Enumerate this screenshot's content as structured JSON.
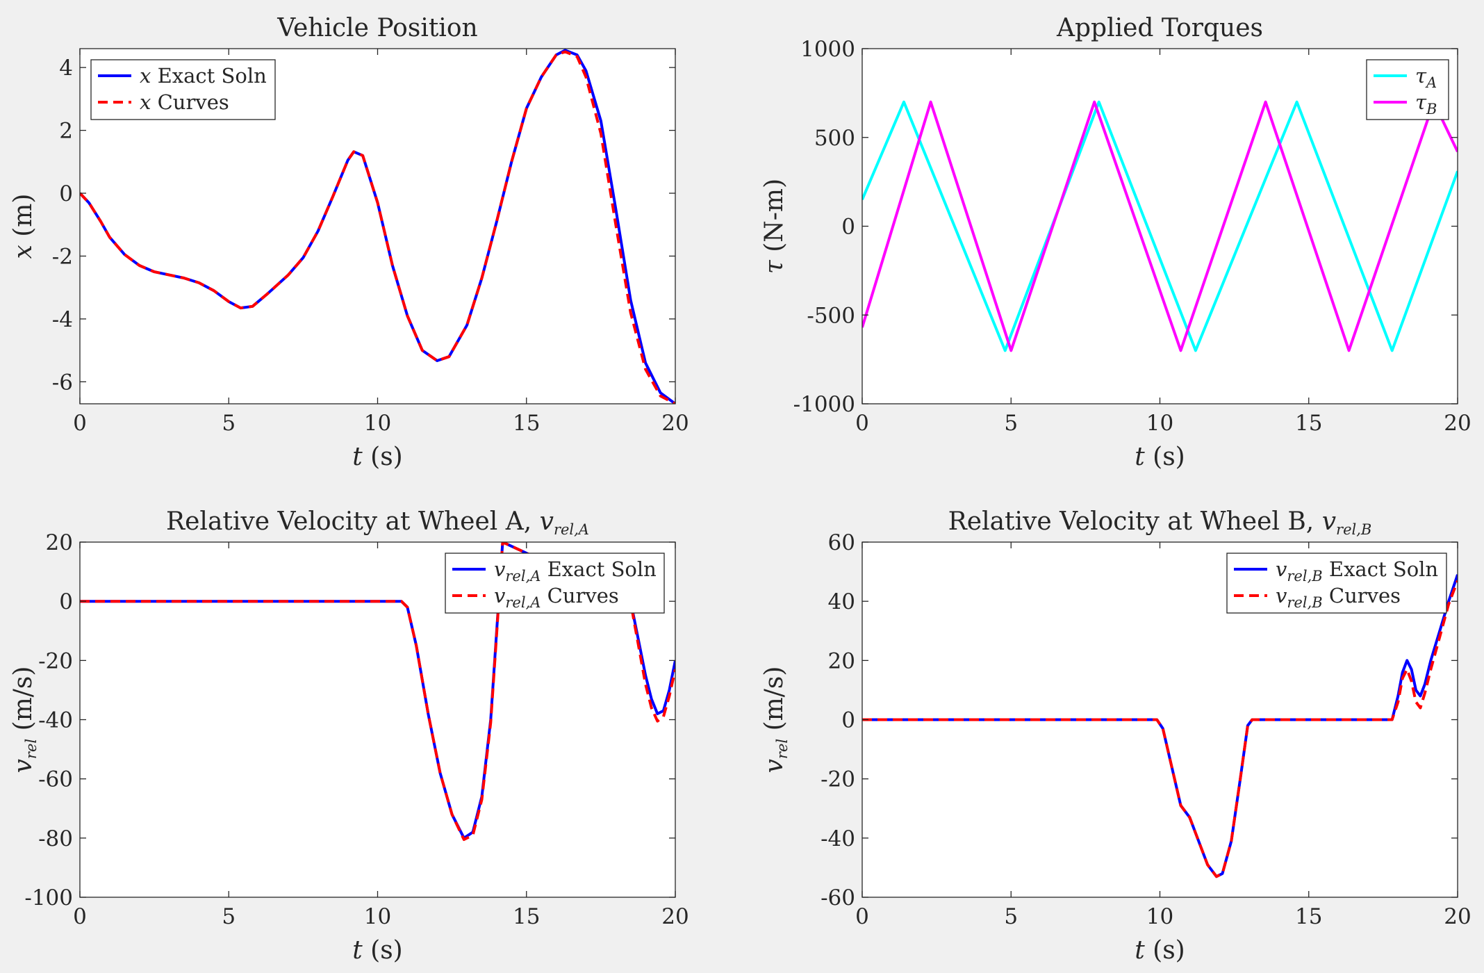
{
  "chart_data": [
    {
      "type": "line",
      "title": "Vehicle Position",
      "xlabel": "t (s)",
      "ylabel": "x (m)",
      "xlim": [
        0,
        20
      ],
      "ylim": [
        -6.7,
        4.6
      ],
      "xticks": [
        0,
        5,
        10,
        15,
        20
      ],
      "yticks": [
        -6,
        -4,
        -2,
        0,
        2,
        4
      ],
      "grid": false,
      "legend": "top-left",
      "series": [
        {
          "name": "x Exact Soln",
          "color": "#0000ff",
          "style": "solid",
          "x": [
            0,
            0.3,
            0.7,
            1,
            1.5,
            2,
            2.5,
            3,
            3.5,
            4,
            4.5,
            5,
            5.4,
            5.8,
            6.3,
            7,
            7.5,
            8,
            8.5,
            9,
            9.2,
            9.5,
            10,
            10.5,
            11,
            11.5,
            12,
            12.4,
            13,
            13.5,
            14,
            14.5,
            15,
            15.5,
            16,
            16.3,
            16.7,
            17,
            17.5,
            18,
            18.5,
            19,
            19.5,
            20
          ],
          "y": [
            0,
            -0.3,
            -0.9,
            -1.4,
            -1.95,
            -2.3,
            -2.5,
            -2.6,
            -2.7,
            -2.85,
            -3.1,
            -3.45,
            -3.65,
            -3.6,
            -3.2,
            -2.6,
            -2.05,
            -1.2,
            -0.1,
            1.05,
            1.32,
            1.2,
            -0.3,
            -2.3,
            -3.9,
            -5.0,
            -5.33,
            -5.2,
            -4.2,
            -2.7,
            -0.9,
            1.0,
            2.7,
            3.7,
            4.4,
            4.55,
            4.4,
            3.9,
            2.3,
            -0.5,
            -3.4,
            -5.4,
            -6.35,
            -6.7
          ]
        },
        {
          "name": "x Curves",
          "color": "#ff0000",
          "style": "dashed",
          "x": [
            0,
            0.3,
            0.7,
            1,
            1.5,
            2,
            2.5,
            3,
            3.5,
            4,
            4.5,
            5,
            5.4,
            5.8,
            6.3,
            7,
            7.5,
            8,
            8.5,
            9,
            9.2,
            9.5,
            10,
            10.5,
            11,
            11.5,
            12,
            12.4,
            13,
            13.5,
            14,
            14.5,
            15,
            15.5,
            16,
            16.3,
            16.7,
            17,
            17.5,
            18,
            18.5,
            19,
            19.5,
            20
          ],
          "y": [
            0,
            -0.3,
            -0.9,
            -1.4,
            -1.95,
            -2.3,
            -2.5,
            -2.6,
            -2.7,
            -2.85,
            -3.1,
            -3.45,
            -3.65,
            -3.6,
            -3.2,
            -2.6,
            -2.05,
            -1.2,
            -0.1,
            1.05,
            1.32,
            1.2,
            -0.3,
            -2.3,
            -3.9,
            -5.0,
            -5.33,
            -5.2,
            -4.2,
            -2.7,
            -0.9,
            1.0,
            2.7,
            3.7,
            4.4,
            4.5,
            4.35,
            3.7,
            1.9,
            -1.0,
            -3.8,
            -5.6,
            -6.45,
            -6.7
          ]
        }
      ]
    },
    {
      "type": "line",
      "title": "Applied Torques",
      "xlabel": "t (s)",
      "ylabel": "τ (N-m)",
      "xlim": [
        0,
        20
      ],
      "ylim": [
        -1000,
        1000
      ],
      "xticks": [
        0,
        5,
        10,
        15,
        20
      ],
      "yticks": [
        -1000,
        -500,
        0,
        500,
        1000
      ],
      "grid": false,
      "legend": "top-right",
      "series": [
        {
          "name": "τA",
          "color": "#00ffff",
          "style": "solid",
          "x": [
            0,
            1.4,
            4.8,
            7.95,
            11.2,
            14.6,
            17.8,
            20
          ],
          "y": [
            150,
            700,
            -700,
            700,
            -700,
            700,
            -700,
            310
          ]
        },
        {
          "name": "τB",
          "color": "#ff00ff",
          "style": "solid",
          "x": [
            0,
            2.3,
            5.0,
            7.8,
            10.7,
            13.55,
            16.35,
            19.2,
            20
          ],
          "y": [
            -570,
            700,
            -700,
            700,
            -700,
            700,
            -700,
            700,
            420
          ]
        }
      ]
    },
    {
      "type": "line",
      "title": "Relative Velocity at Wheel A, v",
      "title_sub": "rel,A",
      "xlabel": "t (s)",
      "ylabel": "v",
      "ylabel_sub": "rel",
      "ylabel_unit": "(m/s)",
      "xlim": [
        0,
        20
      ],
      "ylim": [
        -100,
        20
      ],
      "xticks": [
        0,
        5,
        10,
        15,
        20
      ],
      "yticks": [
        -100,
        -80,
        -60,
        -40,
        -20,
        0,
        20
      ],
      "grid": false,
      "legend": "top-right",
      "series": [
        {
          "name": "v",
          "name_sub": "rel,A",
          "name_suffix": " Exact Soln",
          "color": "#0000ff",
          "style": "solid",
          "x": [
            0,
            10.8,
            11.0,
            11.3,
            11.7,
            12.1,
            12.5,
            12.9,
            13.2,
            13.5,
            13.8,
            14.0,
            14.2,
            18.5,
            18.6,
            18.8,
            19.0,
            19.2,
            19.4,
            19.6,
            19.8,
            20
          ],
          "y": [
            0,
            0,
            -2,
            -15,
            -38,
            -58,
            -72,
            -80,
            -78,
            -66,
            -40,
            -10,
            20,
            0,
            -5,
            -15,
            -25,
            -33,
            -38,
            -37,
            -30,
            -20
          ]
        },
        {
          "name": "v",
          "name_sub": "rel,A",
          "name_suffix": " Curves",
          "color": "#ff0000",
          "style": "dashed",
          "x": [
            0,
            10.8,
            11.0,
            11.3,
            11.7,
            12.1,
            12.5,
            12.9,
            13.2,
            13.5,
            13.8,
            14.0,
            14.2,
            18.5,
            18.6,
            18.8,
            19.0,
            19.2,
            19.4,
            19.6,
            19.8,
            20
          ],
          "y": [
            0,
            0,
            -2,
            -15,
            -38,
            -58,
            -72,
            -80.5,
            -79,
            -67,
            -41,
            -11,
            20,
            0,
            -6,
            -17,
            -28,
            -36,
            -40.5,
            -39,
            -32,
            -23
          ]
        }
      ]
    },
    {
      "type": "line",
      "title": "Relative Velocity at Wheel B, v",
      "title_sub": "rel,B",
      "xlabel": "t (s)",
      "ylabel": "v",
      "ylabel_sub": "rel",
      "ylabel_unit": "(m/s)",
      "xlim": [
        0,
        20
      ],
      "ylim": [
        -60,
        60
      ],
      "xticks": [
        0,
        5,
        10,
        15,
        20
      ],
      "yticks": [
        -60,
        -40,
        -20,
        0,
        20,
        40,
        60
      ],
      "grid": false,
      "legend": "top-right",
      "series": [
        {
          "name": "v",
          "name_sub": "rel,B",
          "name_suffix": " Exact Soln",
          "color": "#0000ff",
          "style": "solid",
          "x": [
            0,
            9.9,
            10.1,
            10.4,
            10.7,
            11.0,
            11.3,
            11.6,
            11.9,
            12.1,
            12.4,
            12.7,
            12.95,
            13.1,
            17.8,
            18.0,
            18.15,
            18.3,
            18.45,
            18.6,
            18.75,
            18.9,
            19.1,
            19.4,
            19.7,
            20
          ],
          "y": [
            0,
            0,
            -3,
            -16,
            -29,
            -33,
            -41,
            -49,
            -53,
            -52,
            -41,
            -20,
            -2,
            0,
            0,
            8,
            16,
            20,
            17,
            10,
            8,
            12,
            20,
            30,
            40,
            49
          ]
        },
        {
          "name": "v",
          "name_sub": "rel,B",
          "name_suffix": " Curves",
          "color": "#ff0000",
          "style": "dashed",
          "x": [
            0,
            9.9,
            10.1,
            10.4,
            10.7,
            11.0,
            11.3,
            11.6,
            11.9,
            12.1,
            12.4,
            12.7,
            12.95,
            13.1,
            17.8,
            18.0,
            18.15,
            18.3,
            18.45,
            18.6,
            18.75,
            18.9,
            19.1,
            19.4,
            19.7,
            20
          ],
          "y": [
            0,
            0,
            -3,
            -16,
            -29,
            -33,
            -41,
            -49,
            -53,
            -52,
            -41,
            -20,
            -2,
            0,
            0,
            6,
            14,
            17,
            13,
            6,
            4,
            9,
            17,
            28,
            39,
            47
          ]
        }
      ]
    }
  ]
}
